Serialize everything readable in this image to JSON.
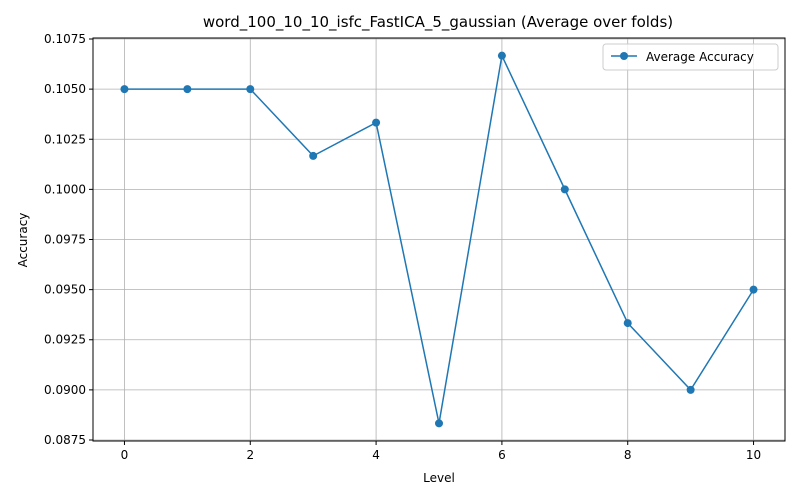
{
  "chart_data": {
    "type": "line",
    "title": "word_100_10_10_isfc_FastICA_5_gaussian (Average over folds)",
    "xlabel": "Level",
    "ylabel": "Accuracy",
    "xlim": [
      -0.5,
      10.5
    ],
    "ylim": [
      0.08745,
      0.10755
    ],
    "x_ticks": [
      0,
      2,
      4,
      6,
      8,
      10
    ],
    "x_tick_labels": [
      "0",
      "2",
      "4",
      "6",
      "8",
      "10"
    ],
    "y_ticks": [
      0.0875,
      0.09,
      0.0925,
      0.095,
      0.0975,
      0.1,
      0.1025,
      0.105,
      0.1075
    ],
    "y_tick_labels": [
      "0.0875",
      "0.0900",
      "0.0925",
      "0.0950",
      "0.0975",
      "0.1000",
      "0.1025",
      "0.1050",
      "0.1075"
    ],
    "grid": true,
    "legend_position": "top-right",
    "series": [
      {
        "name": "Average Accuracy",
        "color": "#1f77b4",
        "marker": "circle",
        "x": [
          0,
          1,
          2,
          3,
          4,
          5,
          6,
          7,
          8,
          9,
          10
        ],
        "y": [
          0.105,
          0.105,
          0.105,
          0.10167,
          0.10333,
          0.08833,
          0.10667,
          0.1,
          0.09333,
          0.09,
          0.095
        ]
      }
    ]
  }
}
